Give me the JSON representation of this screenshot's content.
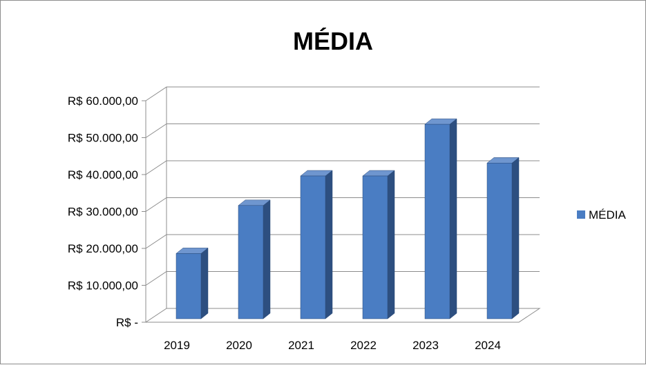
{
  "chart_data": {
    "type": "bar",
    "title": "MÉDIA",
    "categories": [
      "2019",
      "2020",
      "2021",
      "2022",
      "2023",
      "2024"
    ],
    "series": [
      {
        "name": "MÉDIA",
        "values": [
          17500,
          30500,
          38500,
          38500,
          52500,
          42000
        ],
        "color": "#4a7dc3"
      }
    ],
    "y_tick_labels": [
      "R$ -",
      "R$ 10.000,00",
      "R$ 20.000,00",
      "R$ 30.000,00",
      "R$ 40.000,00",
      "R$ 50.000,00",
      "R$ 60.000,00"
    ],
    "ylim": [
      0,
      60000
    ],
    "xlabel": "",
    "ylabel": "",
    "grid": true,
    "style": "3d-column",
    "legend_position": "right"
  }
}
